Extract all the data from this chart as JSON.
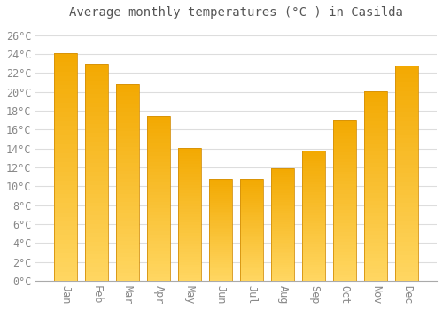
{
  "title": "Average monthly temperatures (°C ) in Casilda",
  "months": [
    "Jan",
    "Feb",
    "Mar",
    "Apr",
    "May",
    "Jun",
    "Jul",
    "Aug",
    "Sep",
    "Oct",
    "Nov",
    "Dec"
  ],
  "values": [
    24.1,
    23.0,
    20.8,
    17.4,
    14.1,
    10.8,
    10.8,
    11.9,
    13.8,
    17.0,
    20.1,
    22.8
  ],
  "bar_color_top": "#F5A800",
  "bar_color_bottom": "#FFD060",
  "bar_edge_color": "#D4900A",
  "background_color": "#FFFFFF",
  "grid_color": "#DDDDDD",
  "text_color": "#888888",
  "title_color": "#555555",
  "ylim": [
    0,
    27
  ],
  "ytick_step": 2,
  "title_fontsize": 10,
  "tick_fontsize": 8.5
}
